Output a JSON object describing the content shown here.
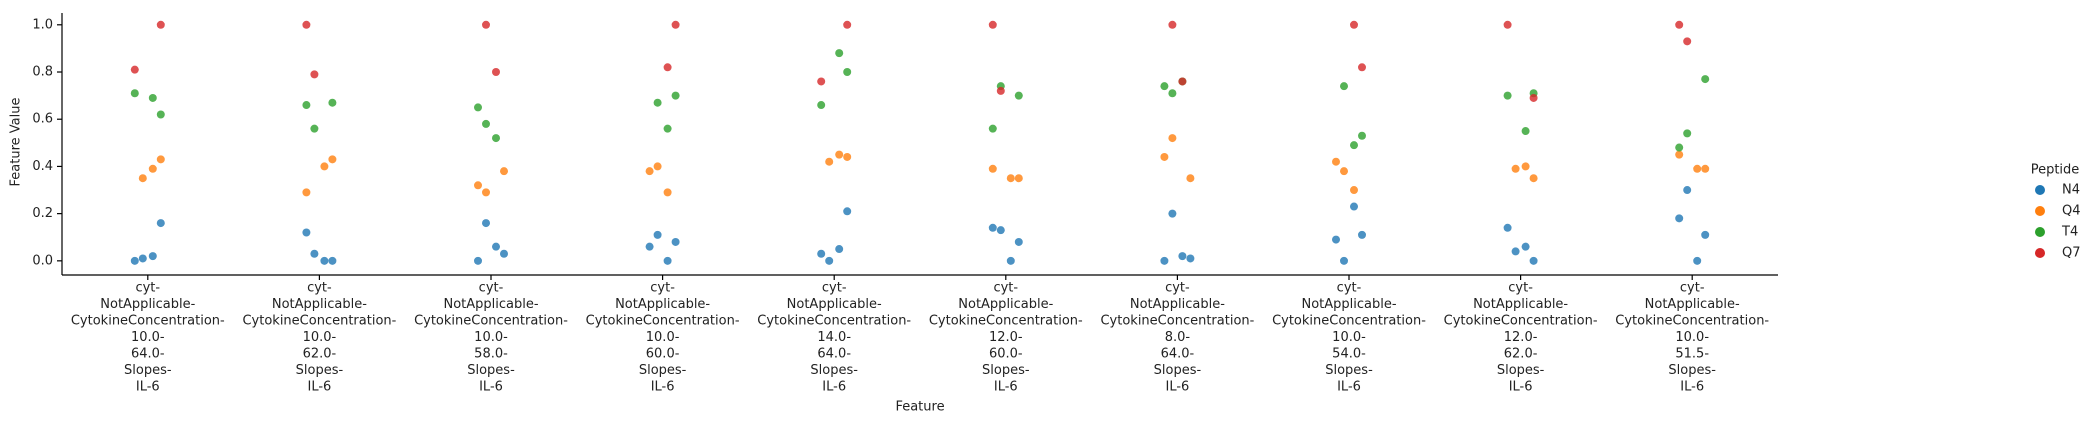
{
  "chart_data": {
    "type": "strip",
    "xlabel": "Feature",
    "ylabel": "Feature Value",
    "legend_title": "Peptide",
    "legend_position": "right",
    "categories": [
      [
        "cyt-",
        "NotApplicable-",
        "CytokineConcentration-",
        "10.0-",
        "64.0-",
        "Slopes-",
        "IL-6"
      ],
      [
        "cyt-",
        "NotApplicable-",
        "CytokineConcentration-",
        "10.0-",
        "62.0-",
        "Slopes-",
        "IL-6"
      ],
      [
        "cyt-",
        "NotApplicable-",
        "CytokineConcentration-",
        "10.0-",
        "58.0-",
        "Slopes-",
        "IL-6"
      ],
      [
        "cyt-",
        "NotApplicable-",
        "CytokineConcentration-",
        "10.0-",
        "60.0-",
        "Slopes-",
        "IL-6"
      ],
      [
        "cyt-",
        "NotApplicable-",
        "CytokineConcentration-",
        "14.0-",
        "64.0-",
        "Slopes-",
        "IL-6"
      ],
      [
        "cyt-",
        "NotApplicable-",
        "CytokineConcentration-",
        "12.0-",
        "60.0-",
        "Slopes-",
        "IL-6"
      ],
      [
        "cyt-",
        "NotApplicable-",
        "CytokineConcentration-",
        "8.0-",
        "64.0-",
        "Slopes-",
        "IL-6"
      ],
      [
        "cyt-",
        "NotApplicable-",
        "CytokineConcentration-",
        "10.0-",
        "54.0-",
        "Slopes-",
        "IL-6"
      ],
      [
        "cyt-",
        "NotApplicable-",
        "CytokineConcentration-",
        "12.0-",
        "62.0-",
        "Slopes-",
        "IL-6"
      ],
      [
        "cyt-",
        "NotApplicable-",
        "CytokineConcentration-",
        "10.0-",
        "51.5-",
        "Slopes-",
        "IL-6"
      ]
    ],
    "series": [
      {
        "name": "N4",
        "color": "#1f77b4",
        "values": [
          [
            0.0,
            0.01,
            0.02,
            0.16
          ],
          [
            0.03,
            0.0,
            0.0,
            0.12
          ],
          [
            0.06,
            0.03,
            0.0,
            0.16
          ],
          [
            0.08,
            0.06,
            0.11,
            0.0
          ],
          [
            0.03,
            0.0,
            0.05,
            0.21
          ],
          [
            0.13,
            0.0,
            0.08,
            0.14
          ],
          [
            0.02,
            0.01,
            0.0,
            0.2
          ],
          [
            0.11,
            0.09,
            0.0,
            0.23
          ],
          [
            0.14,
            0.04,
            0.06,
            0.0
          ],
          [
            0.3,
            0.0,
            0.11,
            0.18
          ]
        ]
      },
      {
        "name": "Q4",
        "color": "#ff7f0e",
        "values": [
          [
            0.35,
            0.39,
            0.43
          ],
          [
            0.4,
            0.43,
            0.29
          ],
          [
            0.38,
            0.32,
            0.29
          ],
          [
            0.38,
            0.4,
            0.29
          ],
          [
            0.42,
            0.45,
            0.44
          ],
          [
            0.35,
            0.35,
            0.39
          ],
          [
            0.35,
            0.44,
            0.52
          ],
          [
            0.42,
            0.38,
            0.3
          ],
          [
            0.39,
            0.4,
            0.35
          ],
          [
            0.39,
            0.39,
            0.45
          ]
        ]
      },
      {
        "name": "T4",
        "color": "#2ca02c",
        "values": [
          [
            0.69,
            0.62,
            0.71
          ],
          [
            0.67,
            0.66,
            0.56
          ],
          [
            0.65,
            0.58,
            0.52
          ],
          [
            0.67,
            0.56,
            0.7
          ],
          [
            0.88,
            0.8,
            0.66
          ],
          [
            0.7,
            0.56,
            0.74
          ],
          [
            0.74,
            0.71,
            0.76
          ],
          [
            0.74,
            0.49,
            0.53
          ],
          [
            0.55,
            0.71,
            0.7
          ],
          [
            0.77,
            0.48,
            0.54
          ]
        ]
      },
      {
        "name": "Q7",
        "color": "#d62728",
        "values": [
          [
            1.0,
            0.81
          ],
          [
            1.0,
            0.79
          ],
          [
            1.0,
            0.8
          ],
          [
            0.82,
            1.0
          ],
          [
            1.0,
            0.76
          ],
          [
            1.0,
            0.72
          ],
          [
            1.0,
            0.76
          ],
          [
            1.0,
            0.82
          ],
          [
            0.69,
            1.0
          ],
          [
            1.0,
            0.93
          ]
        ]
      }
    ],
    "ylim": [
      -0.06,
      1.05
    ],
    "yticks": [
      {
        "value": 0,
        "label": "0.0"
      },
      {
        "value": 0.2,
        "label": "0.2"
      },
      {
        "value": 0.4,
        "label": "0.4"
      },
      {
        "value": 0.6,
        "label": "0.6"
      },
      {
        "value": 0.8,
        "label": "0.8"
      },
      {
        "value": 1,
        "label": "1.0"
      }
    ]
  }
}
